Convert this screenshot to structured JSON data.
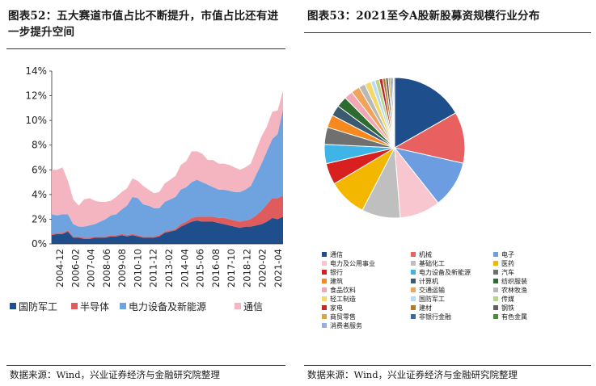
{
  "left_figure": {
    "title": "图表52：五大赛道市值占比不断提升，市值占比还有进一步提升空间",
    "source": "数据来源：Wind，兴业证券经济与金融研究院整理"
  },
  "right_figure": {
    "title": "图表53：2021至今A股新股募资规模行业分布",
    "source": "数据来源：Wind，兴业证券经济与金融研究院整理"
  },
  "chart_data": [
    {
      "type": "area",
      "stacked": true,
      "title": "",
      "ylim": [
        0,
        14
      ],
      "y_ticks": [
        "0%",
        "2%",
        "4%",
        "6%",
        "8%",
        "10%",
        "12%",
        "14%"
      ],
      "x_ticks": [
        "2004-12",
        "2006-02",
        "2007-04",
        "2008-06",
        "2009-08",
        "2010-10",
        "2011-12",
        "2013-02",
        "2014-04",
        "2015-06",
        "2016-08",
        "2017-10",
        "2018-12",
        "2020-02",
        "2021-04"
      ],
      "legend_position": "bottom",
      "x": [
        "2004-12",
        "2005-05",
        "2005-10",
        "2006-02",
        "2006-07",
        "2006-12",
        "2007-04",
        "2007-09",
        "2008-02",
        "2008-06",
        "2008-11",
        "2009-04",
        "2009-08",
        "2010-01",
        "2010-06",
        "2010-10",
        "2011-03",
        "2011-08",
        "2011-12",
        "2012-05",
        "2012-10",
        "2013-02",
        "2013-07",
        "2013-12",
        "2014-04",
        "2014-09",
        "2015-02",
        "2015-06",
        "2015-11",
        "2016-04",
        "2016-08",
        "2017-01",
        "2017-06",
        "2017-10",
        "2018-03",
        "2018-08",
        "2018-12",
        "2019-05",
        "2019-10",
        "2020-02",
        "2020-07",
        "2020-12",
        "2021-04",
        "2021-06"
      ],
      "series": [
        {
          "name": "国防军工",
          "color": "#1f4e8c",
          "values": [
            0.7,
            0.8,
            0.8,
            1.0,
            0.5,
            0.5,
            0.4,
            0.4,
            0.5,
            0.5,
            0.5,
            0.6,
            0.6,
            0.7,
            0.6,
            0.7,
            0.6,
            0.5,
            0.5,
            0.5,
            0.6,
            0.9,
            1.0,
            1.1,
            1.4,
            1.6,
            1.8,
            1.9,
            1.8,
            1.8,
            1.8,
            1.7,
            1.6,
            1.5,
            1.4,
            1.3,
            1.4,
            1.4,
            1.5,
            1.6,
            1.8,
            2.1,
            2.0,
            2.2
          ]
        },
        {
          "name": "半导体",
          "color": "#e05c5c",
          "values": [
            0.1,
            0.1,
            0.1,
            0.1,
            0.1,
            0.1,
            0.1,
            0.1,
            0.1,
            0.1,
            0.1,
            0.1,
            0.1,
            0.1,
            0.1,
            0.1,
            0.1,
            0.1,
            0.1,
            0.1,
            0.1,
            0.1,
            0.1,
            0.1,
            0.2,
            0.2,
            0.3,
            0.3,
            0.4,
            0.4,
            0.4,
            0.4,
            0.5,
            0.5,
            0.5,
            0.5,
            0.5,
            0.6,
            0.8,
            1.1,
            1.4,
            1.6,
            1.7,
            1.7
          ]
        },
        {
          "name": "电力设备及新能源",
          "color": "#6fa3e0",
          "values": [
            1.6,
            1.4,
            1.5,
            1.3,
            1.0,
            0.8,
            0.9,
            1.0,
            1.0,
            1.2,
            1.4,
            1.6,
            1.7,
            2.0,
            2.4,
            3.0,
            3.0,
            2.6,
            2.5,
            2.3,
            2.2,
            2.4,
            2.5,
            2.6,
            2.8,
            2.8,
            2.9,
            3.0,
            2.8,
            2.6,
            2.4,
            2.3,
            2.3,
            2.3,
            2.3,
            2.4,
            2.5,
            2.7,
            3.3,
            3.8,
            4.3,
            4.8,
            5.2,
            7.0
          ]
        },
        {
          "name": "通信",
          "color": "#f5b5c0",
          "values": [
            3.6,
            3.7,
            3.8,
            2.7,
            2.0,
            1.7,
            2.2,
            2.2,
            1.9,
            1.6,
            1.4,
            1.2,
            1.4,
            1.4,
            1.4,
            1.5,
            1.4,
            1.5,
            1.3,
            1.2,
            1.3,
            1.5,
            1.6,
            1.7,
            2.0,
            2.1,
            2.5,
            2.3,
            2.3,
            2.0,
            2.2,
            2.1,
            2.1,
            2.1,
            2.0,
            1.8,
            1.8,
            1.8,
            2.0,
            2.2,
            2.0,
            2.2,
            1.9,
            1.5
          ]
        }
      ]
    },
    {
      "type": "pie",
      "title": "2021至今A股新股募资规模行业分布",
      "legend_position": "bottom",
      "slices": [
        {
          "name": "通信",
          "value": 17.0,
          "color": "#1f4e8c"
        },
        {
          "name": "机械",
          "value": 12.0,
          "color": "#e86060"
        },
        {
          "name": "电子",
          "value": 11.0,
          "color": "#6b9de0"
        },
        {
          "name": "电力及公用事业",
          "value": 9.5,
          "color": "#f7c6cf"
        },
        {
          "name": "基础化工",
          "value": 9.0,
          "color": "#bfbfbf"
        },
        {
          "name": "医药",
          "value": 9.0,
          "color": "#f3b700"
        },
        {
          "name": "银行",
          "value": 5.0,
          "color": "#d92020"
        },
        {
          "name": "电力设备及新能源",
          "value": 4.5,
          "color": "#3fb4e6"
        },
        {
          "name": "汽车",
          "value": 4.0,
          "color": "#707070"
        },
        {
          "name": "建筑",
          "value": 3.0,
          "color": "#f5881f"
        },
        {
          "name": "计算机",
          "value": 2.5,
          "color": "#3a5a70"
        },
        {
          "name": "纺织服装",
          "value": 2.5,
          "color": "#2e6b2e"
        },
        {
          "name": "食品饮料",
          "value": 2.0,
          "color": "#f0a8b4"
        },
        {
          "name": "交通运输",
          "value": 2.0,
          "color": "#f2a35a"
        },
        {
          "name": "农林牧渔",
          "value": 1.5,
          "color": "#b8b8b8"
        },
        {
          "name": "轻工制造",
          "value": 1.5,
          "color": "#f6d86a"
        },
        {
          "name": "国防军工",
          "value": 1.0,
          "color": "#b7dbf2"
        },
        {
          "name": "传媒",
          "value": 1.0,
          "color": "#b5d58c"
        },
        {
          "name": "家电",
          "value": 0.8,
          "color": "#c02828"
        },
        {
          "name": "建材",
          "value": 0.7,
          "color": "#b07a2a"
        },
        {
          "name": "钢铁",
          "value": 0.6,
          "color": "#606060"
        },
        {
          "name": "商贸零售",
          "value": 0.5,
          "color": "#d9a441"
        },
        {
          "name": "非银行金融",
          "value": 0.4,
          "color": "#3b6aa0"
        },
        {
          "name": "有色金属",
          "value": 0.3,
          "color": "#4e8a3a"
        },
        {
          "name": "消费者服务",
          "value": 0.3,
          "color": "#8fb0e0"
        }
      ]
    }
  ]
}
